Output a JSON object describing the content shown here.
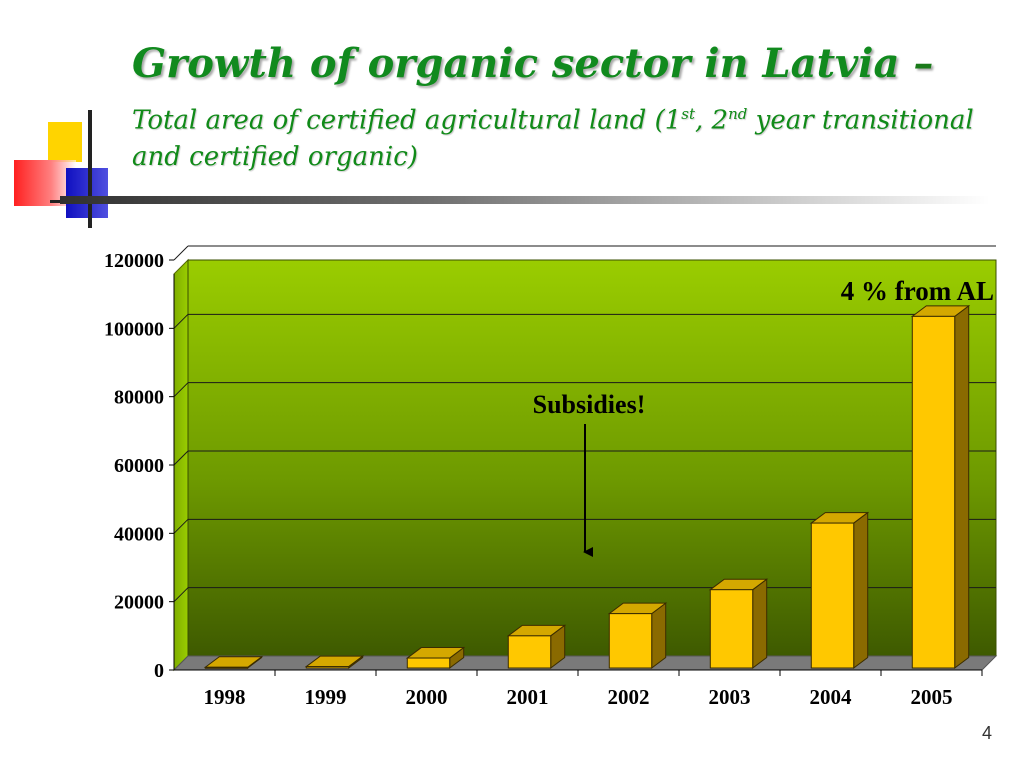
{
  "slide": {
    "title": "Growth of organic sector in Latvia",
    "title_dash": " –",
    "subtitle_part1": "Total area of certified agricultural land (1",
    "subtitle_sup1": "st",
    "subtitle_part2": ", 2",
    "subtitle_sup2": "nd",
    "subtitle_part3": " year transitional and certified organic)",
    "page_number": "4"
  },
  "colors": {
    "title": "#118a1e",
    "bar_front": "#ffc800",
    "bar_side": "#8a6a00",
    "plot_top": "#9acd00",
    "plot_bottom": "#3e5a00"
  },
  "chart_data": {
    "type": "bar",
    "categories": [
      "1998",
      "1999",
      "2000",
      "2001",
      "2002",
      "2003",
      "2004",
      "2005"
    ],
    "values": [
      800,
      1000,
      3500,
      10000,
      16500,
      23500,
      43000,
      103500
    ],
    "ylim": [
      0,
      120000
    ],
    "yticks": [
      "0",
      "20000",
      "40000",
      "60000",
      "80000",
      "100000",
      "120000"
    ],
    "grid": true,
    "annotations": {
      "share": "4 % from AL",
      "subsidies": "Subsidies!"
    }
  }
}
